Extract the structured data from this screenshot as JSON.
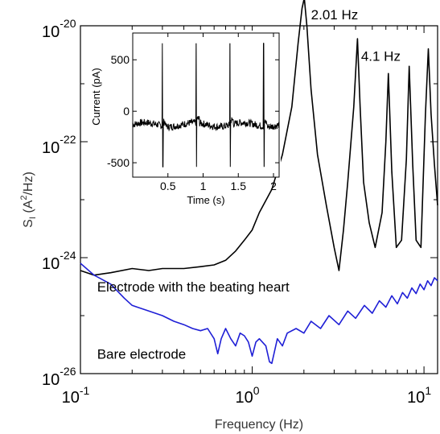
{
  "chart_data": [
    {
      "type": "line",
      "xlabel": "Frequency (Hz)",
      "ylabel": "S_I (A^2/Hz)",
      "ylabel_parts": {
        "main": "S",
        "sub": "I",
        "pre": " (A",
        "sup": "2",
        "post": "/Hz)"
      },
      "x_scale": "log",
      "y_scale": "log",
      "xlim": [
        0.1,
        12
      ],
      "ylim": [
        1e-26,
        1e-20
      ],
      "x_ticks": [
        {
          "value": 0.1,
          "base": "10",
          "exp": "-1"
        },
        {
          "value": 1,
          "base": "10",
          "exp": "0"
        },
        {
          "value": 10,
          "base": "10",
          "exp": "1"
        }
      ],
      "y_ticks": [
        {
          "value": 1e-26,
          "base": "10",
          "exp": "-26"
        },
        {
          "value": 1e-24,
          "base": "10",
          "exp": "-24"
        },
        {
          "value": 1e-22,
          "base": "10",
          "exp": "-22"
        },
        {
          "value": 1e-20,
          "base": "10",
          "exp": "-20"
        }
      ],
      "series": [
        {
          "name": "Electrode with the beating heart",
          "color": "#000000",
          "x": [
            0.1,
            0.12,
            0.15,
            0.2,
            0.25,
            0.3,
            0.4,
            0.5,
            0.6,
            0.7,
            0.8,
            0.9,
            1.0,
            1.1,
            1.3,
            1.5,
            1.7,
            1.85,
            1.95,
            2.01,
            2.08,
            2.2,
            2.4,
            2.7,
            3.0,
            3.2,
            3.4,
            3.6,
            3.9,
            4.1,
            4.25,
            4.45,
            4.8,
            5.2,
            5.7,
            6.0,
            6.2,
            6.5,
            6.9,
            7.4,
            7.9,
            8.2,
            8.6,
            9.0,
            9.6,
            10.2,
            10.6,
            11.0,
            11.5,
            12.0
          ],
          "y": [
            6e-25,
            5e-25,
            5.5e-25,
            6.5e-25,
            6e-25,
            6.5e-25,
            6.5e-25,
            7e-25,
            7.5e-25,
            9e-25,
            1.3e-24,
            2e-24,
            3e-24,
            6e-24,
            1.5e-23,
            6e-23,
            4e-22,
            5e-21,
            2e-20,
            3e-20,
            1e-20,
            8e-22,
            6e-23,
            8e-24,
            1.5e-24,
            6e-25,
            3e-24,
            2e-23,
            4e-22,
            6e-21,
            4e-22,
            2e-23,
            4e-24,
            1.5e-24,
            6e-24,
            1e-22,
            1.5e-21,
            3e-23,
            1.5e-24,
            2e-24,
            5e-23,
            2e-21,
            4e-23,
            2e-24,
            1.5e-24,
            3e-22,
            4e-21,
            3e-22,
            4e-23,
            8e-24
          ]
        },
        {
          "name": "Bare electrode",
          "color": "#1f1fd6",
          "x": [
            0.1,
            0.12,
            0.15,
            0.18,
            0.2,
            0.25,
            0.3,
            0.35,
            0.4,
            0.45,
            0.5,
            0.55,
            0.6,
            0.63,
            0.66,
            0.7,
            0.75,
            0.8,
            0.85,
            0.9,
            0.95,
            1.0,
            1.05,
            1.1,
            1.2,
            1.26,
            1.3,
            1.4,
            1.5,
            1.6,
            1.8,
            2.0,
            2.2,
            2.5,
            2.8,
            3.2,
            3.6,
            4.0,
            4.5,
            5.0,
            5.5,
            6.0,
            6.5,
            7.0,
            7.5,
            8.0,
            8.5,
            9.0,
            9.5,
            10.0,
            10.5,
            11.0,
            11.5,
            12.0
          ],
          "y": [
            8e-25,
            5e-25,
            3.5e-25,
            2e-25,
            1.5e-25,
            1.2e-25,
            1e-25,
            8e-26,
            7e-26,
            6e-26,
            5.5e-26,
            6e-26,
            4e-26,
            2.2e-26,
            4e-26,
            6e-26,
            4e-26,
            3e-26,
            5e-26,
            4.5e-26,
            3.5e-26,
            2e-26,
            3.5e-26,
            4e-26,
            3e-26,
            1.6e-26,
            1.5e-26,
            4e-26,
            3e-26,
            5e-26,
            6e-26,
            5e-26,
            8e-26,
            6e-26,
            1e-25,
            7e-26,
            1.2e-25,
            9e-26,
            1.5e-25,
            1.1e-25,
            1.8e-25,
            1.4e-25,
            2.2e-25,
            1.6e-25,
            2.5e-25,
            2e-25,
            3e-25,
            2.4e-25,
            3.5e-25,
            2.8e-25,
            4e-25,
            3.3e-25,
            4.5e-25,
            4e-25
          ]
        }
      ],
      "annotations": [
        {
          "text": "2.01 Hz",
          "x": 2.2,
          "y": 1.3e-20
        },
        {
          "text": "4.1 Hz",
          "x": 4.3,
          "y": 2.5e-21
        },
        {
          "text": "Electrode with the beating heart",
          "x": 0.125,
          "y": 2.6e-25
        },
        {
          "text": "Bare electrode",
          "x": 0.125,
          "y": 1.8e-26
        }
      ],
      "grid": false,
      "legend": "none"
    },
    {
      "type": "line",
      "role": "inset",
      "xlabel": "Time (s)",
      "ylabel": "Current (pA)",
      "xlim": [
        0,
        2.08
      ],
      "ylim": [
        -640,
        760
      ],
      "x_ticks": [
        0.5,
        1,
        1.5,
        2
      ],
      "x_tick_labels": [
        "0.5",
        "1",
        "1.5",
        "2"
      ],
      "y_ticks": [
        -500,
        0,
        500
      ],
      "y_tick_labels": [
        "-500",
        "0",
        "500"
      ],
      "spike_times": [
        0.42,
        0.9,
        1.38,
        1.86
      ],
      "spike_peak": 660,
      "spike_trough": -540,
      "baseline": -130,
      "series": [
        {
          "name": "",
          "color": "#000000"
        }
      ],
      "grid": false,
      "legend": "none"
    }
  ]
}
